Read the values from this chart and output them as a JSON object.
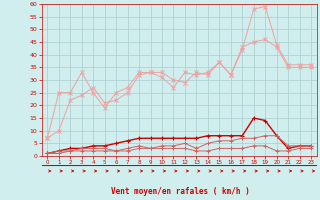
{
  "x": [
    0,
    1,
    2,
    3,
    4,
    5,
    6,
    7,
    8,
    9,
    10,
    11,
    12,
    13,
    14,
    15,
    16,
    17,
    18,
    19,
    20,
    21,
    22,
    23
  ],
  "line1": [
    7,
    25,
    25,
    33,
    25,
    19,
    25,
    27,
    33,
    33,
    33,
    30,
    29,
    33,
    32,
    37,
    32,
    42,
    58,
    59,
    44,
    36,
    36,
    36
  ],
  "line2": [
    7,
    10,
    22,
    24,
    27,
    21,
    22,
    25,
    32,
    33,
    31,
    27,
    33,
    32,
    33,
    37,
    32,
    43,
    45,
    46,
    43,
    35,
    35,
    35
  ],
  "line3": [
    1,
    2,
    3,
    3,
    4,
    4,
    5,
    6,
    7,
    7,
    7,
    7,
    7,
    7,
    8,
    8,
    8,
    8,
    15,
    14,
    8,
    3,
    4,
    4
  ],
  "line4": [
    1,
    2,
    2,
    3,
    3,
    3,
    2,
    3,
    4,
    3,
    4,
    4,
    5,
    3,
    5,
    6,
    6,
    7,
    7,
    8,
    8,
    4,
    4,
    4
  ],
  "line5": [
    1,
    1,
    2,
    2,
    2,
    2,
    2,
    2,
    3,
    3,
    3,
    3,
    3,
    2,
    2,
    3,
    3,
    3,
    4,
    4,
    2,
    2,
    3,
    3
  ],
  "color_light": "#f0a0a0",
  "color_medium": "#d06060",
  "color_dark": "#cc0000",
  "bg_color": "#d0eeee",
  "grid_color": "#aacccc",
  "title": "Vent moyen/en rafales ( km/h )",
  "ylim": [
    0,
    60
  ],
  "yticks": [
    0,
    5,
    10,
    15,
    20,
    25,
    30,
    35,
    40,
    45,
    50,
    55,
    60
  ]
}
